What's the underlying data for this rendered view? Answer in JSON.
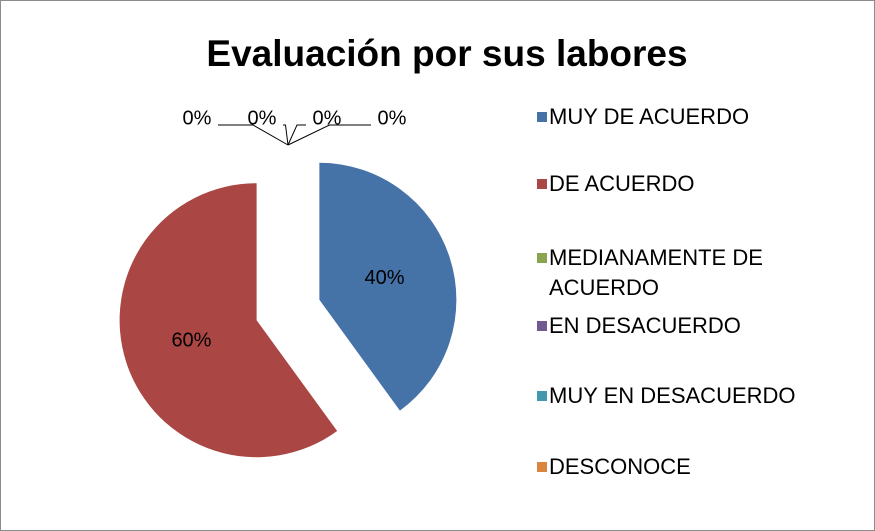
{
  "chart_data": {
    "type": "pie",
    "title": "Evaluación por sus labores",
    "categories": [
      "MUY DE ACUERDO",
      "DE ACUERDO",
      "MEDIANAMENTE DE ACUERDO",
      "EN DESACUERDO",
      "MUY EN DESACUERDO",
      "DESCONOCE"
    ],
    "values": [
      40,
      60,
      0,
      0,
      0,
      0
    ],
    "value_labels": [
      "40%",
      "60%",
      "0%",
      "0%",
      "0%",
      "0%"
    ],
    "colors": [
      "#4572a7",
      "#aa4643",
      "#89a54e",
      "#71588f",
      "#4198af",
      "#db843d"
    ],
    "legend": "right"
  }
}
